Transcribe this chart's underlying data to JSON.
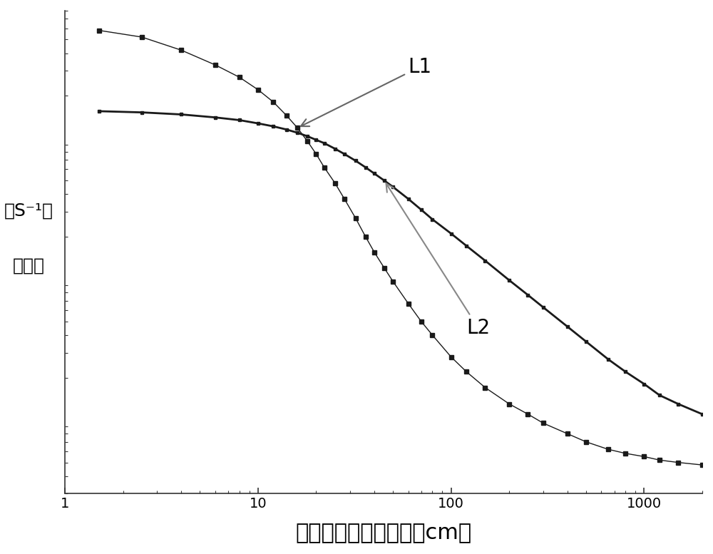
{
  "title": "",
  "xlabel": "探测器到水面的距离（cm）",
  "ylabel_line1": "（S⁻¹）",
  "ylabel_line2": "计数率",
  "xmin": 1,
  "xmax": 2000,
  "ymin": 0.003,
  "ymax": 8.0,
  "background_color": "#ffffff",
  "plot_bg_color": "#ffffff",
  "line_color": "#1a1a1a",
  "label_L1": "L1",
  "label_L2": "L2",
  "L1_x": [
    1.5,
    2.5,
    4.0,
    6.0,
    8.0,
    10.0,
    12.0,
    14.0,
    16.0,
    18.0,
    20.0,
    22.0,
    25.0,
    28.0,
    32.0,
    36.0,
    40.0,
    45.0,
    50.0,
    60.0,
    70.0,
    80.0,
    100.0,
    120.0,
    150.0,
    200.0,
    250.0,
    300.0,
    400.0,
    500.0,
    650.0,
    800.0,
    1000.0,
    1200.0,
    1500.0,
    2000.0
  ],
  "L1_y": [
    5.8,
    5.2,
    4.2,
    3.3,
    2.7,
    2.2,
    1.8,
    1.45,
    1.18,
    0.95,
    0.77,
    0.62,
    0.48,
    0.37,
    0.27,
    0.2,
    0.155,
    0.12,
    0.096,
    0.067,
    0.05,
    0.04,
    0.028,
    0.022,
    0.017,
    0.013,
    0.011,
    0.0095,
    0.008,
    0.007,
    0.0062,
    0.0058,
    0.0055,
    0.0052,
    0.005,
    0.0048
  ],
  "L2_x": [
    1.5,
    2.5,
    4.0,
    6.0,
    8.0,
    10.0,
    12.0,
    14.0,
    16.0,
    18.0,
    20.0,
    22.0,
    25.0,
    28.0,
    32.0,
    36.0,
    40.0,
    45.0,
    50.0,
    60.0,
    70.0,
    80.0,
    100.0,
    120.0,
    150.0,
    200.0,
    250.0,
    300.0,
    400.0,
    500.0,
    650.0,
    800.0,
    1000.0,
    1200.0,
    1500.0,
    2000.0
  ],
  "L2_y": [
    1.55,
    1.52,
    1.47,
    1.4,
    1.34,
    1.27,
    1.21,
    1.15,
    1.09,
    1.03,
    0.97,
    0.92,
    0.84,
    0.77,
    0.69,
    0.62,
    0.56,
    0.5,
    0.45,
    0.37,
    0.31,
    0.265,
    0.21,
    0.172,
    0.135,
    0.098,
    0.077,
    0.063,
    0.046,
    0.036,
    0.027,
    0.022,
    0.018,
    0.015,
    0.013,
    0.011
  ],
  "xlabel_fontsize": 22,
  "ylabel_fontsize": 18,
  "annotation_fontsize": 20,
  "tick_fontsize": 14
}
